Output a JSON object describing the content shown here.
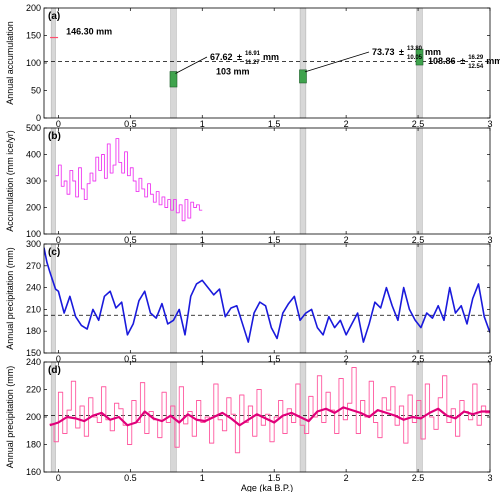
{
  "chart_data": [
    {
      "panel_label": "(a)",
      "type": "scatter",
      "ylabel": "Annual accumulation",
      "xlim": [
        -0.1,
        3.0
      ],
      "ylim": [
        0,
        200
      ],
      "y_ticks": [
        0,
        50,
        100,
        150,
        200
      ],
      "x_ticks": [
        0,
        0.5,
        1,
        1.5,
        2,
        2.5,
        3
      ],
      "x_tick_labels": [
        "0",
        "0.5",
        "1",
        "1.5",
        "2",
        "2.5",
        "3"
      ],
      "reference_line": {
        "y": 103,
        "label": "103 mm",
        "style": "dashed"
      },
      "highlight_bands": [
        [
          -0.05,
          -0.02
        ],
        [
          0.78,
          0.82
        ],
        [
          1.68,
          1.72
        ],
        [
          2.49,
          2.53
        ]
      ],
      "points": [
        {
          "x": -0.03,
          "y": 146.3,
          "label": "146.30 mm",
          "upper": "",
          "lower": "",
          "color": "#ff4d6d",
          "marker": "line"
        },
        {
          "x": 0.8,
          "y": 67.62,
          "label": "67.62",
          "upper": "16.91",
          "lower": "11.27",
          "unit": "mm",
          "color": "#3fa34d",
          "marker": "box",
          "ymin": 56.35,
          "ymax": 84.53
        },
        {
          "x": 1.7,
          "y": 73.73,
          "label": "73.73",
          "upper": "13.80",
          "lower": "10.05",
          "unit": "mm",
          "color": "#3fa34d",
          "marker": "box",
          "ymin": 63.68,
          "ymax": 87.53
        },
        {
          "x": 2.51,
          "y": 108.86,
          "label": "108.86",
          "upper": "16.29",
          "lower": "12.54",
          "unit": "mm",
          "color": "#3fa34d",
          "marker": "box",
          "ymin": 96.32,
          "ymax": 125.15
        }
      ],
      "pm_symbol": "±"
    },
    {
      "panel_label": "(b)",
      "type": "line",
      "ylabel": "Accumulation (mm ice/yr)",
      "xlim": [
        -0.1,
        3.0
      ],
      "ylim": [
        100,
        500
      ],
      "y_ticks": [
        100,
        200,
        300,
        400,
        500
      ],
      "x_ticks": [
        0,
        0.5,
        1,
        1.5,
        2,
        2.5,
        3
      ],
      "x_tick_labels": [
        "0",
        "0.5",
        "1",
        "1.5",
        "2",
        "2.5",
        "3"
      ],
      "highlight_bands": [
        [
          -0.05,
          -0.02
        ],
        [
          0.78,
          0.82
        ],
        [
          1.68,
          1.72
        ],
        [
          2.49,
          2.53
        ]
      ],
      "series": [
        {
          "color": "#ee3bf0",
          "step": true,
          "x": [
            -0.02,
            0.0,
            0.02,
            0.04,
            0.06,
            0.08,
            0.1,
            0.12,
            0.14,
            0.16,
            0.18,
            0.2,
            0.22,
            0.24,
            0.26,
            0.28,
            0.3,
            0.32,
            0.34,
            0.36,
            0.38,
            0.4,
            0.42,
            0.44,
            0.46,
            0.48,
            0.5,
            0.52,
            0.54,
            0.56,
            0.58,
            0.6,
            0.62,
            0.64,
            0.66,
            0.68,
            0.7,
            0.72,
            0.74,
            0.76,
            0.78,
            0.8,
            0.82,
            0.84,
            0.86,
            0.88,
            0.9,
            0.92,
            0.94,
            0.96,
            0.98
          ],
          "y": [
            320,
            360,
            280,
            300,
            250,
            340,
            300,
            240,
            350,
            270,
            230,
            290,
            330,
            300,
            390,
            340,
            400,
            310,
            440,
            330,
            360,
            460,
            370,
            330,
            410,
            320,
            350,
            300,
            260,
            310,
            270,
            240,
            290,
            250,
            220,
            260,
            210,
            240,
            200,
            230,
            190,
            230,
            180,
            210,
            150,
            230,
            160,
            220,
            200,
            210,
            190
          ]
        }
      ]
    },
    {
      "panel_label": "(c)",
      "type": "line",
      "ylabel": "Annual precipitation (mm)",
      "xlim": [
        -0.1,
        3.0
      ],
      "ylim": [
        150,
        300
      ],
      "y_ticks": [
        150,
        180,
        210,
        240,
        270,
        300
      ],
      "x_ticks": [
        0,
        0.5,
        1,
        1.5,
        2,
        2.5,
        3
      ],
      "x_tick_labels": [
        "0",
        "0.5",
        "1",
        "1.5",
        "2",
        "2.5",
        "3"
      ],
      "reference_line": {
        "y": 202,
        "style": "dashed"
      },
      "highlight_bands": [
        [
          -0.05,
          -0.02
        ],
        [
          0.78,
          0.82
        ],
        [
          1.68,
          1.72
        ],
        [
          2.49,
          2.53
        ]
      ],
      "series": [
        {
          "color": "#1a1adc",
          "step": false,
          "x": [
            -0.1,
            -0.08,
            -0.06,
            -0.04,
            -0.02,
            0.0,
            0.04,
            0.08,
            0.12,
            0.16,
            0.2,
            0.24,
            0.28,
            0.32,
            0.36,
            0.4,
            0.44,
            0.48,
            0.52,
            0.56,
            0.6,
            0.64,
            0.68,
            0.72,
            0.76,
            0.8,
            0.84,
            0.88,
            0.92,
            0.96,
            1.0,
            1.04,
            1.08,
            1.12,
            1.16,
            1.2,
            1.24,
            1.28,
            1.32,
            1.36,
            1.4,
            1.44,
            1.48,
            1.52,
            1.56,
            1.6,
            1.64,
            1.68,
            1.72,
            1.76,
            1.8,
            1.84,
            1.88,
            1.92,
            1.96,
            2.0,
            2.04,
            2.08,
            2.12,
            2.16,
            2.2,
            2.24,
            2.28,
            2.32,
            2.36,
            2.4,
            2.44,
            2.48,
            2.52,
            2.56,
            2.6,
            2.64,
            2.68,
            2.72,
            2.76,
            2.8,
            2.84,
            2.88,
            2.92,
            2.96,
            3.0
          ],
          "y": [
            295,
            275,
            262,
            250,
            238,
            235,
            205,
            228,
            200,
            188,
            183,
            210,
            195,
            228,
            235,
            212,
            220,
            175,
            190,
            222,
            235,
            205,
            198,
            218,
            190,
            195,
            210,
            175,
            228,
            245,
            250,
            240,
            230,
            238,
            200,
            212,
            215,
            190,
            165,
            205,
            220,
            215,
            185,
            170,
            205,
            218,
            228,
            195,
            205,
            210,
            185,
            175,
            200,
            185,
            195,
            175,
            190,
            205,
            165,
            190,
            220,
            212,
            240,
            215,
            195,
            240,
            210,
            195,
            185,
            205,
            198,
            215,
            195,
            240,
            205,
            215,
            190,
            225,
            245,
            200,
            178
          ]
        }
      ]
    },
    {
      "panel_label": "(d)",
      "type": "line",
      "ylabel": "Annual precipitation (mm)",
      "xlabel": "Age (ka B.P.)",
      "xlim": [
        -0.1,
        3.0
      ],
      "ylim": [
        160,
        240
      ],
      "y_ticks": [
        160,
        180,
        200,
        220,
        240
      ],
      "x_ticks": [
        0,
        0.5,
        1,
        1.5,
        2,
        2.5,
        3
      ],
      "x_tick_labels": [
        "0",
        "0.5",
        "1",
        "1.5",
        "2",
        "2.5",
        "3"
      ],
      "reference_line": {
        "y": 201,
        "style": "dashed"
      },
      "highlight_bands": [
        [
          -0.05,
          -0.02
        ],
        [
          0.78,
          0.82
        ],
        [
          1.68,
          1.72
        ],
        [
          2.49,
          2.53
        ]
      ],
      "series": [
        {
          "color": "#ff5aa0",
          "step": true,
          "x": [
            -0.06,
            -0.03,
            0.0,
            0.03,
            0.06,
            0.09,
            0.12,
            0.15,
            0.18,
            0.21,
            0.24,
            0.27,
            0.3,
            0.33,
            0.36,
            0.39,
            0.42,
            0.45,
            0.48,
            0.51,
            0.54,
            0.57,
            0.6,
            0.63,
            0.66,
            0.69,
            0.72,
            0.75,
            0.78,
            0.81,
            0.84,
            0.87,
            0.9,
            0.93,
            0.96,
            0.99,
            1.02,
            1.05,
            1.08,
            1.11,
            1.14,
            1.17,
            1.2,
            1.23,
            1.26,
            1.29,
            1.32,
            1.35,
            1.38,
            1.41,
            1.44,
            1.47,
            1.5,
            1.53,
            1.56,
            1.59,
            1.62,
            1.65,
            1.68,
            1.71,
            1.74,
            1.77,
            1.8,
            1.83,
            1.86,
            1.89,
            1.92,
            1.95,
            1.98,
            2.01,
            2.04,
            2.07,
            2.1,
            2.13,
            2.16,
            2.19,
            2.22,
            2.25,
            2.28,
            2.31,
            2.34,
            2.37,
            2.4,
            2.43,
            2.46,
            2.49,
            2.52,
            2.55,
            2.58,
            2.61,
            2.64,
            2.67,
            2.7,
            2.73,
            2.76,
            2.79,
            2.82,
            2.85,
            2.88,
            2.91,
            2.94,
            2.97
          ],
          "y": [
            195,
            182,
            218,
            188,
            205,
            226,
            192,
            208,
            186,
            214,
            200,
            196,
            222,
            198,
            190,
            210,
            206,
            194,
            180,
            212,
            196,
            225,
            188,
            204,
            198,
            185,
            218,
            196,
            208,
            178,
            222,
            195,
            204,
            186,
            212,
            196,
            200,
            181,
            224,
            198,
            190,
            214,
            202,
            174,
            216,
            196,
            208,
            186,
            220,
            194,
            202,
            182,
            200,
            212,
            188,
            206,
            196,
            224,
            194,
            188,
            215,
            200,
            230,
            196,
            218,
            205,
            188,
            228,
            198,
            210,
            236,
            188,
            212,
            200,
            226,
            196,
            185,
            214,
            205,
            222,
            194,
            208,
            181,
            216,
            196,
            212,
            184,
            224,
            200,
            191,
            214,
            230,
            196,
            206,
            186,
            212,
            204,
            198,
            224,
            194,
            208,
            203
          ]
        },
        {
          "color": "#e0007a",
          "step": false,
          "x": [
            -0.06,
            0.0,
            0.06,
            0.12,
            0.18,
            0.24,
            0.3,
            0.36,
            0.42,
            0.48,
            0.54,
            0.6,
            0.66,
            0.72,
            0.78,
            0.84,
            0.9,
            0.96,
            1.02,
            1.08,
            1.14,
            1.2,
            1.26,
            1.32,
            1.38,
            1.44,
            1.5,
            1.56,
            1.62,
            1.68,
            1.74,
            1.8,
            1.86,
            1.92,
            1.98,
            2.04,
            2.1,
            2.16,
            2.22,
            2.28,
            2.34,
            2.4,
            2.46,
            2.52,
            2.58,
            2.64,
            2.7,
            2.76,
            2.82,
            2.88,
            2.94,
            3.0
          ],
          "y": [
            194,
            196,
            200,
            199,
            197,
            201,
            203,
            198,
            200,
            194,
            196,
            204,
            199,
            197,
            201,
            196,
            202,
            198,
            197,
            200,
            203,
            199,
            194,
            198,
            202,
            199,
            196,
            201,
            203,
            200,
            197,
            204,
            206,
            203,
            207,
            205,
            203,
            200,
            205,
            203,
            201,
            198,
            200,
            199,
            203,
            206,
            201,
            199,
            204,
            202,
            204,
            204
          ]
        }
      ]
    }
  ]
}
